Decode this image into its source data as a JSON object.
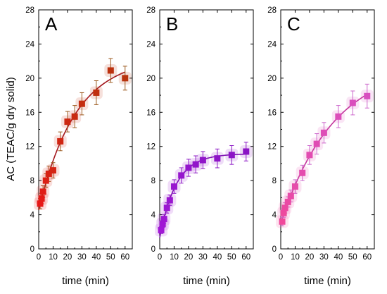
{
  "chart_data": [
    {
      "type": "scatter",
      "panel_label": "A",
      "xlabel": "time (min)",
      "ylabel": "AC (TEAC/g dry solid)",
      "xlim": [
        0,
        65
      ],
      "ylim": [
        0,
        28
      ],
      "xticks": [
        0,
        10,
        20,
        30,
        40,
        50,
        60
      ],
      "yticks": [
        0,
        4,
        8,
        12,
        16,
        20,
        24,
        28
      ],
      "grid": false,
      "fit_line": true,
      "marker": "square",
      "colors": {
        "marker_start": "#e81919",
        "marker_end": "#b8330d",
        "line": "#a3161c",
        "error": "#9c5a1e"
      },
      "series": [
        {
          "x": [
            1,
            2,
            3,
            5,
            7,
            10,
            15,
            20,
            25,
            30,
            40,
            50,
            60
          ],
          "y": [
            5.3,
            5.9,
            6.7,
            8.0,
            8.8,
            9.2,
            12.6,
            14.9,
            15.5,
            17.0,
            18.3,
            20.9,
            20.0
          ],
          "err": [
            0.6,
            0.6,
            0.7,
            0.8,
            0.9,
            0.9,
            1.1,
            1.2,
            1.3,
            1.3,
            1.4,
            1.4,
            1.4
          ]
        }
      ]
    },
    {
      "type": "scatter",
      "panel_label": "B",
      "xlabel": "time (min)",
      "ylabel": "",
      "xlim": [
        0,
        65
      ],
      "ylim": [
        0,
        28
      ],
      "xticks": [
        0,
        10,
        20,
        30,
        40,
        50,
        60
      ],
      "yticks": [
        0,
        4,
        8,
        12,
        16,
        20,
        24,
        28
      ],
      "grid": false,
      "fit_line": true,
      "marker": "square",
      "colors": {
        "marker_start": "#a218d6",
        "marker_end": "#8a14c4",
        "line": "#7d12b0",
        "error": "#8a14c4"
      },
      "series": [
        {
          "x": [
            1,
            2,
            3,
            5,
            7,
            10,
            15,
            20,
            25,
            30,
            40,
            50,
            60
          ],
          "y": [
            2.2,
            2.9,
            3.5,
            4.8,
            5.7,
            7.3,
            8.6,
            9.5,
            9.9,
            10.4,
            10.6,
            11.0,
            11.4
          ],
          "err": [
            0.4,
            0.4,
            0.5,
            0.6,
            0.6,
            0.8,
            0.9,
            1.0,
            1.0,
            1.0,
            1.1,
            1.1,
            1.1
          ]
        }
      ]
    },
    {
      "type": "scatter",
      "panel_label": "C",
      "xlabel": "time (min)",
      "ylabel": "",
      "xlim": [
        0,
        65
      ],
      "ylim": [
        0,
        28
      ],
      "xticks": [
        0,
        10,
        20,
        30,
        40,
        50,
        60
      ],
      "yticks": [
        0,
        4,
        8,
        12,
        16,
        20,
        24,
        28
      ],
      "grid": false,
      "fit_line": true,
      "marker": "square",
      "colors": {
        "marker_start": "#f0489b",
        "marker_end": "#d84fc0",
        "line": "#c2359c",
        "error": "#cc66cc"
      },
      "series": [
        {
          "x": [
            1,
            2,
            3,
            5,
            7,
            10,
            15,
            20,
            25,
            30,
            40,
            50,
            60
          ],
          "y": [
            3.2,
            4.2,
            4.8,
            5.5,
            6.2,
            7.3,
            8.9,
            11.0,
            12.3,
            13.6,
            15.5,
            17.1,
            17.9
          ],
          "err": [
            0.5,
            0.5,
            0.6,
            0.6,
            0.7,
            0.8,
            0.9,
            1.1,
            1.2,
            1.2,
            1.3,
            1.4,
            1.4
          ]
        }
      ]
    }
  ]
}
